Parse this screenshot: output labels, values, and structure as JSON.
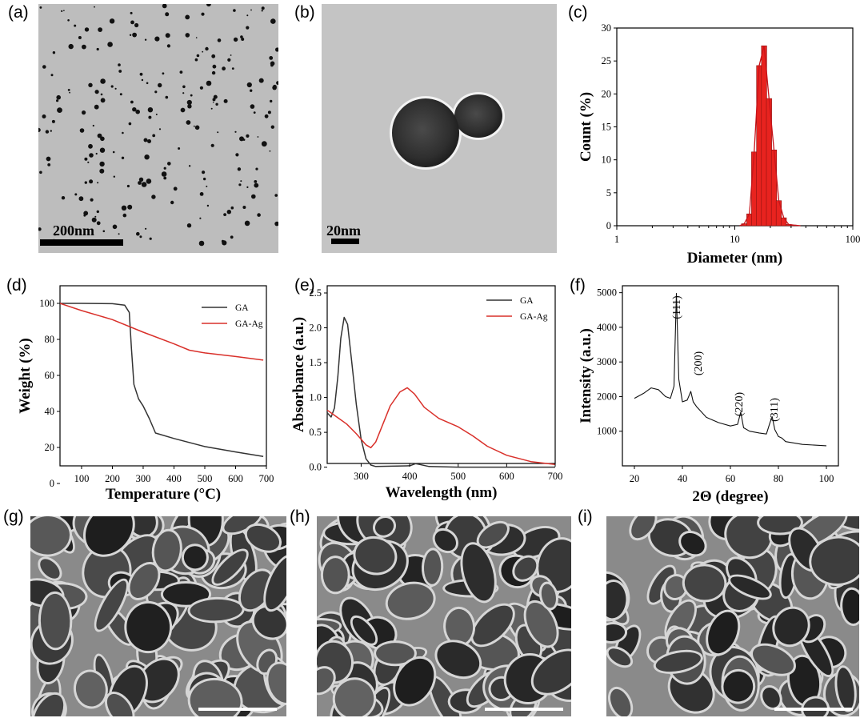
{
  "panels": {
    "a": {
      "letter": "(a)",
      "scale_label": "200nm"
    },
    "b": {
      "letter": "(b)",
      "scale_label": "20nm"
    },
    "c": {
      "letter": "(c)"
    },
    "d": {
      "letter": "(d)"
    },
    "e": {
      "letter": "(e)"
    },
    "f": {
      "letter": "(f)"
    },
    "g": {
      "letter": "(g)"
    },
    "h": {
      "letter": "(h)"
    },
    "i": {
      "letter": "(i)"
    }
  },
  "chart_data": [
    {
      "panel": "c",
      "type": "bar",
      "xlabel": "Diameter (nm)",
      "ylabel": "Count (%)",
      "xscale": "log",
      "xlim": [
        1,
        100
      ],
      "ylim": [
        0,
        30
      ],
      "xticks": [
        "1",
        "10",
        "100"
      ],
      "yticks": [
        "0",
        "5",
        "10",
        "15",
        "20",
        "25",
        "30"
      ],
      "bar_color": "#e8231f",
      "bins_nm": [
        12.0,
        13.3,
        14.6,
        16.1,
        17.7,
        19.5,
        21.5,
        23.6,
        26.0,
        28.6,
        31.5
      ],
      "values": [
        0.3,
        1.8,
        11.2,
        24.3,
        27.3,
        19.3,
        11.5,
        3.8,
        1.2,
        0.2,
        0.1
      ],
      "fit_curve": true
    },
    {
      "panel": "d",
      "type": "line",
      "xlabel": "Temperature (°C)",
      "ylabel": "Weight (%)",
      "xlim": [
        30,
        700
      ],
      "ylim": [
        0,
        100
      ],
      "xticks": [
        "100",
        "200",
        "300",
        "400",
        "500",
        "600",
        "700"
      ],
      "yticks": [
        "0",
        "20",
        "40",
        "60",
        "80",
        "100"
      ],
      "legend_position": "top-right",
      "series": [
        {
          "name": "GA",
          "color": "#333333",
          "x": [
            30,
            100,
            200,
            240,
            255,
            262,
            270,
            285,
            300,
            320,
            340,
            400,
            500,
            600,
            690
          ],
          "y": [
            100,
            100,
            99.8,
            99,
            95,
            75,
            55,
            47,
            43,
            36,
            28,
            25,
            20.5,
            17.5,
            15
          ]
        },
        {
          "name": "GA-Ag",
          "color": "#d9302a",
          "x": [
            30,
            100,
            200,
            300,
            400,
            450,
            500,
            600,
            690
          ],
          "y": [
            100,
            96,
            91,
            84,
            77.5,
            74,
            72.5,
            70.5,
            68.5
          ]
        }
      ]
    },
    {
      "panel": "e",
      "type": "line",
      "xlabel": "Wavelength (nm)",
      "ylabel": "Absorbance (a.u.)",
      "xlim": [
        230,
        700
      ],
      "ylim": [
        -0.05,
        2.5
      ],
      "xticks": [
        "300",
        "400",
        "500",
        "600",
        "700"
      ],
      "yticks": [
        "0.0",
        "0.5",
        "1.0",
        "1.5",
        "2.0",
        "2.5"
      ],
      "legend_position": "top-right",
      "series": [
        {
          "name": "GA",
          "color": "#333333",
          "x": [
            230,
            238,
            245,
            252,
            258,
            265,
            272,
            280,
            290,
            300,
            310,
            320,
            330,
            400,
            412,
            420,
            440,
            500,
            600,
            700
          ],
          "y": [
            0.78,
            0.72,
            0.85,
            1.3,
            1.85,
            2.15,
            2.05,
            1.55,
            0.9,
            0.4,
            0.12,
            0.03,
            0.01,
            0.02,
            0.05,
            0.04,
            0.01,
            0.0,
            0.0,
            0.0
          ]
        },
        {
          "name": "GA-Ag",
          "color": "#d9302a",
          "x": [
            230,
            250,
            270,
            290,
            310,
            320,
            330,
            345,
            360,
            380,
            395,
            410,
            430,
            460,
            500,
            530,
            560,
            600,
            650,
            700
          ],
          "y": [
            0.82,
            0.72,
            0.62,
            0.48,
            0.32,
            0.28,
            0.36,
            0.62,
            0.88,
            1.08,
            1.14,
            1.05,
            0.86,
            0.7,
            0.58,
            0.45,
            0.3,
            0.17,
            0.08,
            0.04
          ]
        }
      ]
    },
    {
      "panel": "f",
      "type": "line",
      "xlabel": "2Θ (degree)",
      "ylabel": "Intensity (a.u.)",
      "xlim": [
        15,
        105
      ],
      "ylim": [
        0,
        5200
      ],
      "xticks": [
        "20",
        "40",
        "60",
        "80",
        "100"
      ],
      "yticks": [
        "1000",
        "2000",
        "3000",
        "4000",
        "5000"
      ],
      "series": [
        {
          "name": "",
          "color": "#111111",
          "x": [
            20,
            24,
            27,
            30,
            33,
            35,
            36.5,
            37.5,
            38.5,
            40,
            42,
            43.5,
            44.5,
            46,
            50,
            55,
            60,
            63,
            64.3,
            65.5,
            68,
            72,
            75,
            76.5,
            77.4,
            78.5,
            80,
            81.5,
            83,
            90,
            100
          ],
          "y": [
            1950,
            2100,
            2250,
            2200,
            2000,
            1950,
            2300,
            4980,
            2500,
            1850,
            1900,
            2150,
            1850,
            1700,
            1400,
            1250,
            1150,
            1200,
            1550,
            1100,
            1000,
            950,
            920,
            1250,
            1420,
            1050,
            850,
            800,
            700,
            620,
            580
          ]
        }
      ],
      "annotations": [
        "(111)",
        "(200)",
        "(220)",
        "(311)"
      ]
    }
  ]
}
